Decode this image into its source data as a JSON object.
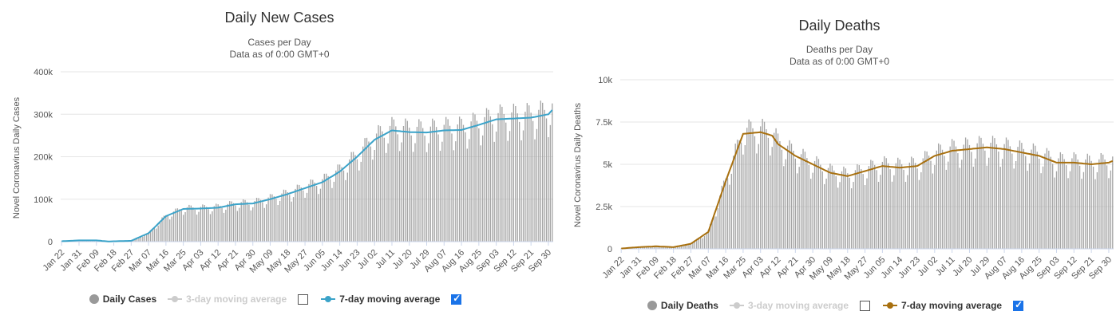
{
  "chart_data": [
    {
      "type": "bar",
      "title": "Daily New Cases",
      "subtitle_line1": "Cases per Day",
      "subtitle_line2": "Data as of 0:00 GMT+0",
      "ylabel": "Novel Coronavirus Daily Cases",
      "ylim": [
        0,
        400000
      ],
      "yticks": [
        0,
        100000,
        200000,
        300000,
        400000
      ],
      "ytick_labels": [
        "0",
        "100k",
        "200k",
        "300k",
        "400k"
      ],
      "categories": [
        "Jan 22",
        "Jan 31",
        "Feb 09",
        "Feb 18",
        "Feb 27",
        "Mar 07",
        "Mar 16",
        "Mar 25",
        "Apr 03",
        "Apr 12",
        "Apr 21",
        "Apr 30",
        "May 09",
        "May 18",
        "May 27",
        "Jun 05",
        "Jun 14",
        "Jun 23",
        "Jul 02",
        "Jul 11",
        "Jul 20",
        "Jul 29",
        "Aug 07",
        "Aug 16",
        "Aug 25",
        "Sep 03",
        "Sep 12",
        "Sep 21",
        "Sep 30"
      ],
      "days": 255,
      "trend_days": [
        0,
        9,
        18,
        24,
        36,
        45,
        54,
        63,
        72,
        81,
        90,
        99,
        108,
        117,
        126,
        135,
        144,
        153,
        162,
        171,
        180,
        189,
        198,
        207,
        216,
        225,
        234,
        243,
        252,
        254
      ],
      "trend_values": [
        1000,
        3000,
        3000,
        500,
        2000,
        20000,
        60000,
        77000,
        78000,
        80000,
        88000,
        90000,
        100000,
        112000,
        126000,
        140000,
        165000,
        200000,
        240000,
        262000,
        258000,
        257000,
        262000,
        263000,
        275000,
        288000,
        290000,
        292000,
        300000,
        310000
      ],
      "series": [
        {
          "name": "Daily Cases",
          "color": "#999999"
        },
        {
          "name": "3-day moving average",
          "color": "#cccccc",
          "checked": false
        },
        {
          "name": "7-day moving average",
          "color": "#3ba3c9",
          "checked": true
        }
      ]
    },
    {
      "type": "bar",
      "title": "Daily Deaths",
      "subtitle_line1": "Deaths per Day",
      "subtitle_line2": "Data as of 0:00 GMT+0",
      "ylabel": "Novel Coronavirus Daily Deaths",
      "ylim": [
        0,
        10000
      ],
      "yticks": [
        0,
        2500,
        5000,
        7500,
        10000
      ],
      "ytick_labels": [
        "0",
        "2.5k",
        "5k",
        "7.5k",
        "10k"
      ],
      "categories": [
        "Jan 22",
        "Jan 31",
        "Feb 09",
        "Feb 18",
        "Feb 27",
        "Mar 07",
        "Mar 16",
        "Mar 25",
        "Apr 03",
        "Apr 12",
        "Apr 21",
        "Apr 30",
        "May 09",
        "May 18",
        "May 27",
        "Jun 05",
        "Jun 14",
        "Jun 23",
        "Jul 02",
        "Jul 11",
        "Jul 20",
        "Jul 29",
        "Aug 07",
        "Aug 16",
        "Aug 25",
        "Sep 03",
        "Sep 12",
        "Sep 21",
        "Sep 30"
      ],
      "days": 255,
      "trend_days": [
        0,
        9,
        18,
        27,
        36,
        45,
        54,
        63,
        72,
        78,
        81,
        90,
        99,
        108,
        117,
        126,
        135,
        144,
        153,
        162,
        171,
        180,
        189,
        198,
        207,
        216,
        225,
        234,
        243,
        252,
        254
      ],
      "trend_values": [
        20,
        100,
        150,
        100,
        300,
        1000,
        4000,
        6800,
        6900,
        6700,
        6200,
        5500,
        5000,
        4500,
        4300,
        4600,
        4900,
        4800,
        4900,
        5500,
        5800,
        5900,
        6000,
        5900,
        5700,
        5500,
        5100,
        5100,
        5000,
        5100,
        5200
      ],
      "series": [
        {
          "name": "Daily Deaths",
          "color": "#999999"
        },
        {
          "name": "3-day moving average",
          "color": "#cccccc",
          "checked": false
        },
        {
          "name": "7-day moving average",
          "color": "#a8700f",
          "checked": true
        }
      ]
    }
  ]
}
